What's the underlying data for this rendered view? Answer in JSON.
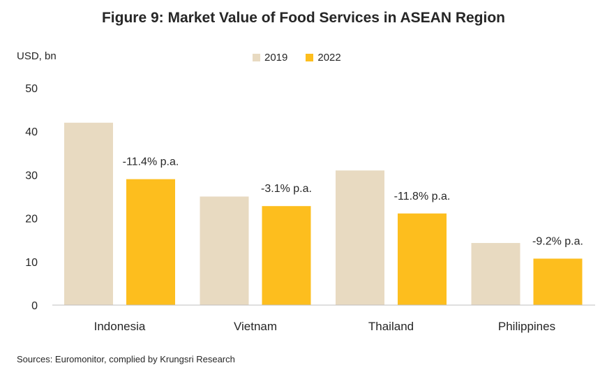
{
  "title": "Figure 9: Market Value of Food Services in ASEAN Region",
  "unit_label": "USD, bn",
  "source": "Sources: Euromonitor, complied by Krungsri Research",
  "chart_data": {
    "type": "bar",
    "title": "Figure 9: Market Value of Food Services in ASEAN Region",
    "xlabel": "",
    "ylabel": "USD, bn",
    "ylim": [
      0,
      50
    ],
    "yticks": [
      0,
      10,
      20,
      30,
      40,
      50
    ],
    "categories": [
      "Indonesia",
      "Vietnam",
      "Thailand",
      "Philippines"
    ],
    "series": [
      {
        "name": "2019",
        "color": "#E8DAC1",
        "values": [
          42,
          25,
          31,
          14.3
        ]
      },
      {
        "name": "2022",
        "color": "#FDBE1E",
        "values": [
          29,
          22.8,
          21.1,
          10.7
        ]
      }
    ],
    "annotations": [
      "-11.4% p.a.",
      "-3.1% p.a.",
      "-11.8% p.a.",
      "-9.2% p.a."
    ],
    "legend_position": "top-center",
    "grid": false
  }
}
